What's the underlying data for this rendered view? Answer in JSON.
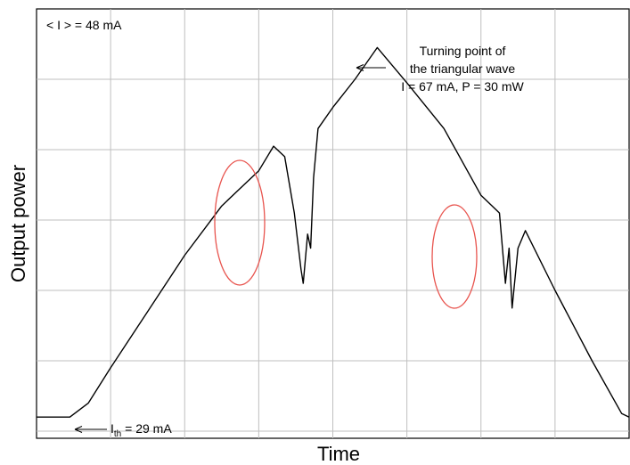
{
  "chart_data": {
    "type": "line",
    "title": "",
    "xlabel": "Time",
    "ylabel": "Output power",
    "grid": true,
    "x_divisions": 8,
    "y_divisions": 6,
    "series": [
      {
        "values_description_skip": false,
        "points": [
          [
            0.0,
            0.2
          ],
          [
            0.45,
            0.2
          ],
          [
            0.7,
            0.4
          ],
          [
            1.0,
            0.9
          ],
          [
            1.5,
            1.7
          ],
          [
            2.0,
            2.5
          ],
          [
            2.5,
            3.2
          ],
          [
            2.7,
            3.4
          ],
          [
            3.0,
            3.7
          ],
          [
            3.2,
            4.05
          ],
          [
            3.35,
            3.9
          ],
          [
            3.48,
            3.1
          ],
          [
            3.57,
            2.3
          ],
          [
            3.6,
            2.1
          ],
          [
            3.66,
            2.8
          ],
          [
            3.7,
            2.6
          ],
          [
            3.74,
            3.6
          ],
          [
            3.8,
            4.3
          ],
          [
            4.0,
            4.6
          ],
          [
            4.3,
            5.0
          ],
          [
            4.6,
            5.45
          ],
          [
            5.0,
            4.95
          ],
          [
            5.5,
            4.3
          ],
          [
            6.0,
            3.35
          ],
          [
            6.25,
            3.1
          ],
          [
            6.33,
            2.1
          ],
          [
            6.38,
            2.6
          ],
          [
            6.42,
            1.75
          ],
          [
            6.5,
            2.6
          ],
          [
            6.6,
            2.85
          ],
          [
            7.0,
            2.0
          ],
          [
            7.5,
            1.0
          ],
          [
            7.9,
            0.25
          ],
          [
            8.0,
            0.2
          ]
        ]
      }
    ],
    "annotations": {
      "mean_current": "< I > = 48 mA",
      "turning_line1": "Turning point of",
      "turning_line2": "the triangular wave",
      "turning_line3": "I = 67 mA, P = 30 mW",
      "threshold_I": "I",
      "threshold_sub": "th",
      "threshold_value": " = 29 mA"
    },
    "highlight_color": "#e8544e",
    "line_color": "#000000",
    "grid_color": "#bfbfbf"
  }
}
